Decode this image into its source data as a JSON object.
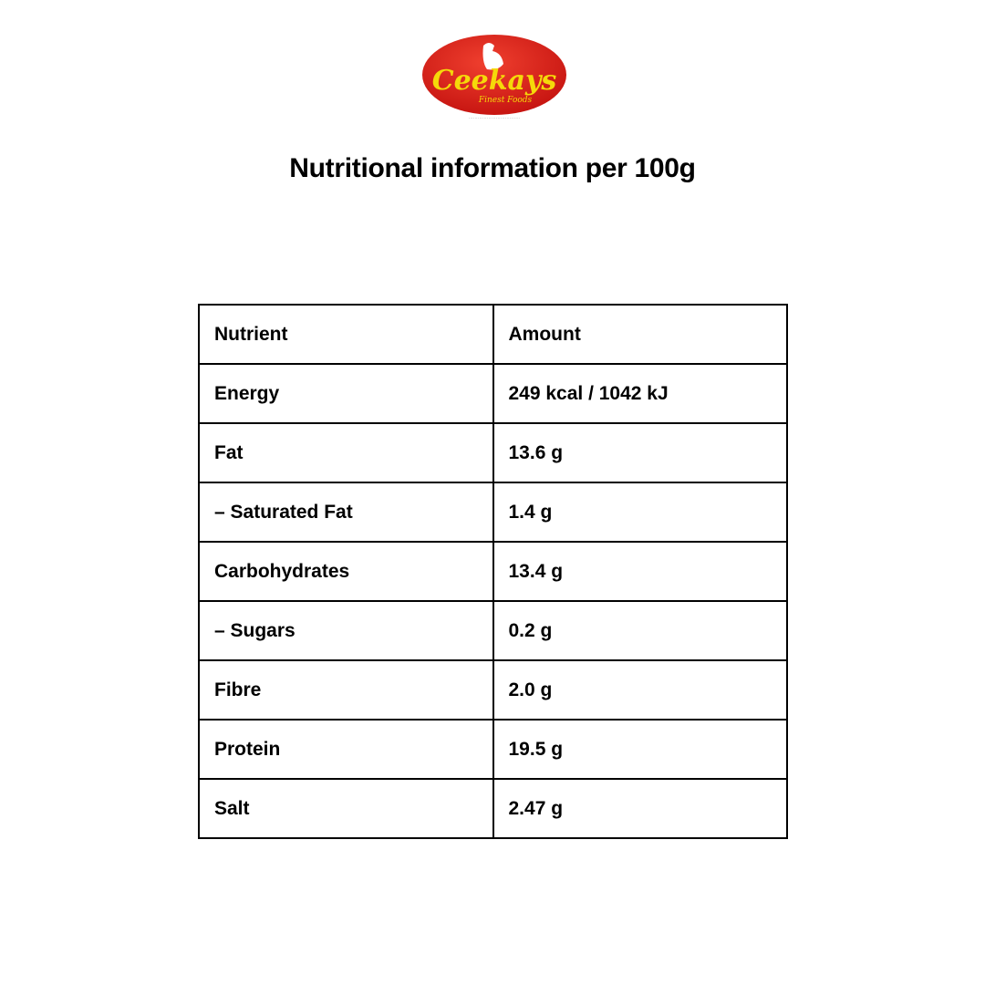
{
  "logo": {
    "brand": "Ceekays",
    "tagline": "Finest Foods",
    "colors": {
      "red": "#d81e1e",
      "yellow": "#f5d90a"
    }
  },
  "title": "Nutritional information per 100g",
  "table": {
    "headers": [
      "Nutrient",
      "Amount"
    ],
    "rows": [
      [
        "Energy",
        "249 kcal / 1042 kJ"
      ],
      [
        "Fat",
        "13.6 g"
      ],
      [
        "– Saturated Fat",
        "1.4 g"
      ],
      [
        "Carbohydrates",
        "13.4 g"
      ],
      [
        "– Sugars",
        "0.2 g"
      ],
      [
        "Fibre",
        "2.0 g"
      ],
      [
        "Protein",
        "19.5 g"
      ],
      [
        "Salt",
        "2.47 g"
      ]
    ]
  }
}
